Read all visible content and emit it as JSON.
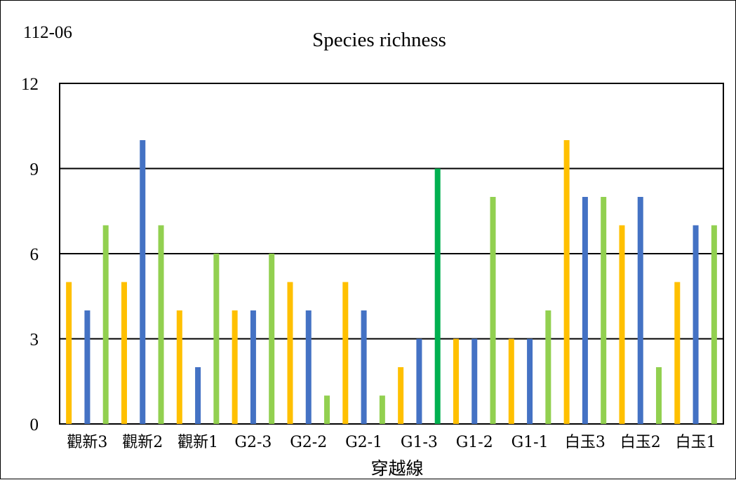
{
  "corner_label": "112-06",
  "chart_data": {
    "type": "bar",
    "title": "Species richness",
    "xlabel": "穿越線",
    "ylabel": "",
    "ylim": [
      0,
      12
    ],
    "yticks": [
      0,
      3,
      6,
      9,
      12
    ],
    "grid": true,
    "bar_order": [
      {
        "group": "觀新3",
        "values": [
          5,
          4,
          7
        ],
        "colors": [
          "#FFC000",
          "#4472C4",
          "#92D050"
        ]
      },
      {
        "group": "觀新2",
        "values": [
          5,
          10,
          7
        ],
        "colors": [
          "#FFC000",
          "#4472C4",
          "#92D050"
        ]
      },
      {
        "group": "觀新1",
        "values": [
          4,
          2,
          6
        ],
        "colors": [
          "#FFC000",
          "#4472C4",
          "#92D050"
        ]
      },
      {
        "group": "G2-3",
        "values": [
          4,
          4,
          6
        ],
        "colors": [
          "#FFC000",
          "#4472C4",
          "#92D050"
        ]
      },
      {
        "group": "G2-2",
        "values": [
          5,
          4,
          1
        ],
        "colors": [
          "#FFC000",
          "#4472C4",
          "#92D050"
        ]
      },
      {
        "group": "G2-1",
        "values": [
          5,
          4,
          1
        ],
        "colors": [
          "#FFC000",
          "#4472C4",
          "#92D050"
        ]
      },
      {
        "group": "G1-3",
        "values": [
          2,
          3,
          9
        ],
        "colors": [
          "#FFC000",
          "#4472C4",
          "#00B050"
        ]
      },
      {
        "group": "G1-2",
        "values": [
          3,
          3,
          8
        ],
        "colors": [
          "#FFC000",
          "#4472C4",
          "#92D050"
        ]
      },
      {
        "group": "G1-1",
        "values": [
          3,
          3,
          4
        ],
        "colors": [
          "#FFC000",
          "#4472C4",
          "#92D050"
        ]
      },
      {
        "group": "白玉3",
        "values": [
          10,
          8,
          8
        ],
        "colors": [
          "#FFC000",
          "#4472C4",
          "#92D050"
        ]
      },
      {
        "group": "白玉2",
        "values": [
          7,
          8,
          2
        ],
        "colors": [
          "#FFC000",
          "#4472C4",
          "#92D050"
        ]
      },
      {
        "group": "白玉1",
        "values": [
          5,
          7,
          7
        ],
        "colors": [
          "#FFC000",
          "#4472C4",
          "#92D050"
        ]
      }
    ]
  },
  "colors": {
    "axis": "#000000",
    "grid": "#000000"
  }
}
